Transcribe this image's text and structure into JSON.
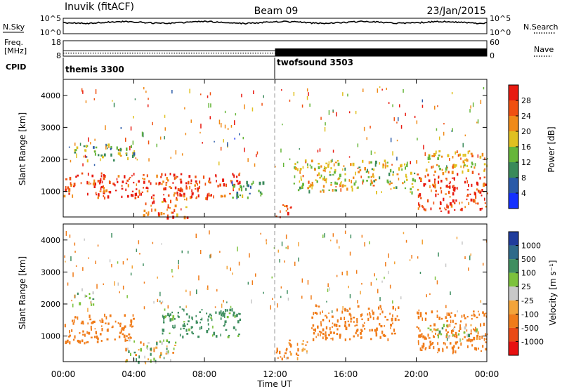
{
  "header": {
    "station": "Inuvik (fitACF)",
    "beam": "Beam 09",
    "date": "23/Jan/2015"
  },
  "top_panels": {
    "nsky_label": "N.Sky",
    "nsky_ticks": [
      "10^5",
      "10^0"
    ],
    "nsearch_label": "N.Search",
    "nsearch_ticks": [
      "10^5",
      "10^0"
    ],
    "freq_label_line1": "Freq.",
    "freq_label_line2": "[MHz]",
    "freq_ticks": [
      "18",
      "8"
    ],
    "nave_label": "Nave",
    "nave_ticks": [
      "60",
      "0"
    ],
    "cpid_label": "CPID",
    "programs": [
      {
        "name": "themis 3300",
        "start_hour": 0
      },
      {
        "name": "twofsound 3503",
        "start_hour": 12
      }
    ],
    "freq_value_mhz": 11.5,
    "nave_before_noon": 12,
    "nave_after_noon": 30
  },
  "axes": {
    "ylabel": "Slant Range [km]",
    "xlabel": "Time UT",
    "xticks": [
      "00:00",
      "04:00",
      "08:00",
      "12:00",
      "16:00",
      "20:00",
      "00:00"
    ],
    "xtick_hours": [
      0,
      4,
      8,
      12,
      16,
      20,
      24
    ],
    "yticks": [
      "1000",
      "2000",
      "3000",
      "4000"
    ],
    "ytick_values": [
      1000,
      2000,
      3000,
      4000
    ],
    "range_km": [
      200,
      4500
    ],
    "time_hours": [
      0,
      24
    ]
  },
  "power_scale": {
    "label": "Power [dB]",
    "ticks": [
      "4",
      "8",
      "12",
      "16",
      "20",
      "24",
      "28"
    ],
    "colors": [
      "#1430ff",
      "#2a5aa8",
      "#3a8a5a",
      "#66b63a",
      "#e0c020",
      "#f08a18",
      "#f05010",
      "#e81a10"
    ]
  },
  "velocity_scale": {
    "label": "Velocity [m s⁻¹]",
    "ticks": [
      "1000",
      "500",
      "100",
      "25",
      "-25",
      "-100",
      "-500",
      "-1000"
    ],
    "colors": [
      "#1f3c9c",
      "#2e6a8a",
      "#3f8e60",
      "#7cc23c",
      "#c8c8c8",
      "#f3a43a",
      "#f07c1a",
      "#ea4a16",
      "#e81010"
    ]
  },
  "chart_data": [
    {
      "type": "heatmap",
      "title": "Power",
      "quantity": "Power [dB]",
      "x": "Time UT (hours)",
      "y": "Slant Range [km]",
      "ylim": [
        200,
        4500
      ],
      "xlim": [
        0,
        24
      ],
      "regions": [
        {
          "t": [
            0,
            10
          ],
          "r": [
            800,
            1600
          ],
          "power_db": 28
        },
        {
          "t": [
            0.5,
            4
          ],
          "r": [
            2000,
            2500
          ],
          "power_db": 14
        },
        {
          "t": [
            4.5,
            7
          ],
          "r": [
            200,
            800
          ],
          "power_db": 26
        },
        {
          "t": [
            9.5,
            11.3
          ],
          "r": [
            800,
            1400
          ],
          "power_db": 10
        },
        {
          "t": [
            12,
            13
          ],
          "r": [
            200,
            600
          ],
          "power_db": 26
        },
        {
          "t": [
            13,
            20
          ],
          "r": [
            1000,
            2000
          ],
          "power_db": 18
        },
        {
          "t": [
            20,
            24
          ],
          "r": [
            400,
            1600
          ],
          "power_db": 28
        },
        {
          "t": [
            20.5,
            24
          ],
          "r": [
            1600,
            2300
          ],
          "power_db": 20
        }
      ]
    },
    {
      "type": "heatmap",
      "title": "Velocity",
      "quantity": "Velocity [m s-1]",
      "x": "Time UT (hours)",
      "y": "Slant Range [km]",
      "ylim": [
        200,
        4500
      ],
      "xlim": [
        0,
        24
      ],
      "regions": [
        {
          "t": [
            0,
            4
          ],
          "r": [
            800,
            1700
          ],
          "velocity": -300
        },
        {
          "t": [
            0.5,
            1.7
          ],
          "r": [
            2000,
            2500
          ],
          "velocity": 0
        },
        {
          "t": [
            3.5,
            6.5
          ],
          "r": [
            200,
            900
          ],
          "velocity": 0
        },
        {
          "t": [
            5.5,
            10
          ],
          "r": [
            1000,
            1900
          ],
          "velocity": 200
        },
        {
          "t": [
            12,
            14
          ],
          "r": [
            300,
            900
          ],
          "velocity": -150
        },
        {
          "t": [
            14,
            19
          ],
          "r": [
            900,
            2000
          ],
          "velocity": -300
        },
        {
          "t": [
            20,
            24
          ],
          "r": [
            500,
            1800
          ],
          "velocity": -300
        },
        {
          "t": [
            20.5,
            23.5
          ],
          "r": [
            900,
            1400
          ],
          "velocity": 0
        }
      ]
    }
  ]
}
